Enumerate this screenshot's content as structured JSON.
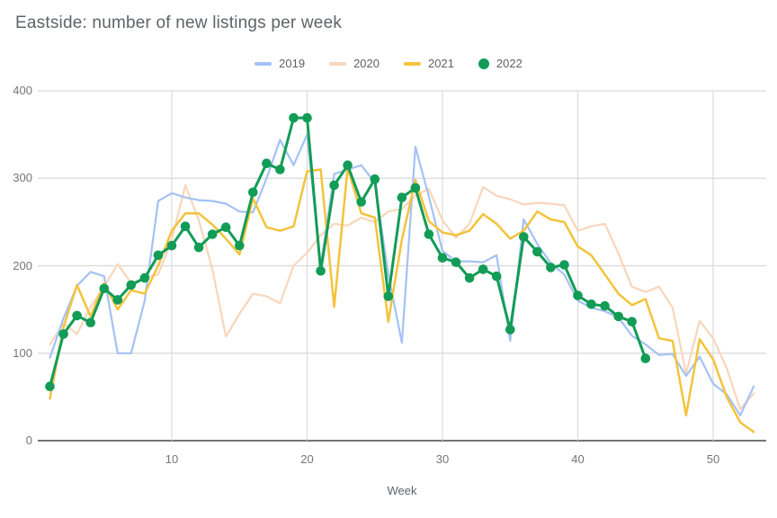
{
  "title": "Eastside: number of new listings per week",
  "chart_data": {
    "type": "line",
    "title": "Eastside: number of new listings per week",
    "xlabel": "Week",
    "ylabel": "",
    "grid": true,
    "legend_position": "top-center",
    "ylim": [
      0,
      400
    ],
    "xlim_weeks": [
      1,
      53
    ],
    "y_ticks": [
      0,
      100,
      200,
      300,
      400
    ],
    "x_ticks": [
      10,
      20,
      30,
      40,
      50
    ],
    "x_unit": "week number",
    "series": [
      {
        "name": "2019",
        "color": "#a4c2f4",
        "swatch": "line",
        "stroke_width": 2.2,
        "marker": false,
        "values": [
          95,
          140,
          177,
          193,
          188,
          100,
          100,
          160,
          274,
          283,
          278,
          275,
          274,
          271,
          262,
          261,
          300,
          344,
          315,
          350,
          200,
          305,
          310,
          315,
          295,
          190,
          112,
          336,
          279,
          217,
          205,
          205,
          204,
          212,
          114,
          253,
          225,
          203,
          190,
          160,
          152,
          148,
          141,
          120,
          110,
          98,
          99,
          74,
          96,
          65,
          53,
          29,
          62
        ]
      },
      {
        "name": "2020",
        "color": "#f8d6bb",
        "swatch": "line",
        "stroke_width": 2.2,
        "marker": false,
        "values": [
          110,
          134,
          122,
          153,
          176,
          202,
          180,
          186,
          190,
          230,
          292,
          252,
          196,
          119,
          145,
          168,
          165,
          157,
          200,
          215,
          235,
          248,
          246,
          255,
          250,
          262,
          265,
          280,
          288,
          252,
          232,
          248,
          290,
          280,
          276,
          270,
          272,
          271,
          269,
          240,
          245,
          248,
          214,
          176,
          170,
          176,
          152,
          77,
          137,
          117,
          83,
          36,
          54
        ]
      },
      {
        "name": "2021",
        "color": "#f3c33c",
        "swatch": "line",
        "stroke_width": 2.5,
        "marker": false,
        "values": [
          48,
          130,
          178,
          142,
          180,
          150,
          172,
          168,
          200,
          240,
          260,
          260,
          247,
          231,
          213,
          277,
          244,
          240,
          245,
          308,
          310,
          153,
          312,
          260,
          255,
          136,
          230,
          298,
          251,
          238,
          235,
          240,
          259,
          248,
          231,
          240,
          262,
          253,
          250,
          222,
          212,
          190,
          168,
          155,
          162,
          117,
          114,
          29,
          116,
          93,
          50,
          21,
          10
        ]
      },
      {
        "name": "2022",
        "color": "#129c56",
        "swatch": "dot",
        "stroke_width": 3,
        "marker": true,
        "values": [
          62,
          122,
          143,
          135,
          174,
          161,
          178,
          186,
          212,
          223,
          245,
          221,
          236,
          244,
          223,
          284,
          317,
          310,
          369,
          369,
          194,
          292,
          315,
          273,
          299,
          165,
          278,
          289,
          236,
          209,
          204,
          186,
          196,
          188,
          127,
          233,
          216,
          198,
          201,
          166,
          156,
          154,
          142,
          136,
          94
        ]
      }
    ]
  }
}
